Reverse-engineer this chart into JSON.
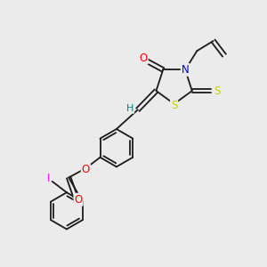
{
  "bg_color": "#ebebeb",
  "bond_color": "#1a1a1a",
  "bond_width": 1.3,
  "atom_colors": {
    "O": "#ff0000",
    "N": "#0000cd",
    "S": "#cccc00",
    "I": "#ee00ee",
    "H": "#008080",
    "C": "#1a1a1a"
  },
  "font_size": 7.5
}
